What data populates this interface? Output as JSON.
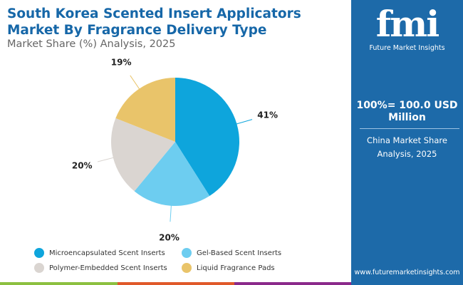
{
  "header": {
    "title": "South Korea Scented Insert Applicators Market By Fragrance Delivery Type",
    "subtitle": "Market Share (%) Analysis, 2025"
  },
  "sidebar": {
    "logo_text": "fmi",
    "logo_name": "Future Market Insights",
    "total": "100%= 100.0 USD Million",
    "caption": "China Market Share Analysis, 2025",
    "url": "www.futuremarketinsights.com"
  },
  "chart_data": {
    "type": "pie",
    "start": "top",
    "direction": "clockwise",
    "categories": [
      "Microencapsulated Scent Inserts",
      "Gel-Based Scent Inserts",
      "Polymer-Embedded Scent Inserts",
      "Liquid Fragrance Pads"
    ],
    "values": [
      41,
      20,
      20,
      19
    ],
    "labels": [
      "41%",
      "20%",
      "20%",
      "19%"
    ],
    "colors": [
      "#0ea5dc",
      "#6dcdf0",
      "#dad5d1",
      "#e9c46a"
    ],
    "legend": "bottom"
  },
  "colors": {
    "brand": "#1d6aa9",
    "stripe": [
      "#8cc040",
      "#e0592a",
      "#8b2a8b"
    ]
  }
}
